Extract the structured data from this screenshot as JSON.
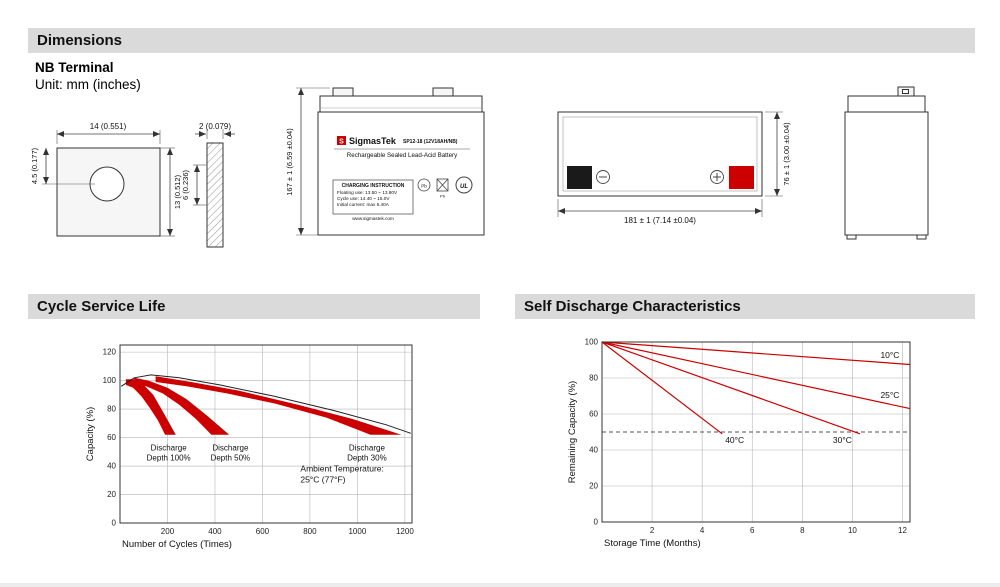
{
  "page": {
    "dimensions_title": "Dimensions",
    "terminal_type": "NB Terminal",
    "unit_label": "Unit: mm (inches)",
    "cycle_title": "Cycle Service Life",
    "discharge_title": "Self Discharge Characteristics"
  },
  "dims": {
    "terminal_front": {
      "width": "14 (0.551)",
      "hole": "4.5 (0.177)",
      "height": "13 (0.512)"
    },
    "terminal_side": {
      "thickness": "2 (0.079)",
      "height": "6 (0.236)"
    },
    "battery": {
      "height": "167 ± 1 (6.59 ±0.04)",
      "length": "181 ± 1 (7.14 ±0.04)",
      "width": "76 ± 1 (3.00 ±0.04)"
    }
  },
  "battery_label": {
    "logo_letter": "S",
    "brand": "SigmasTek",
    "model": "SP12-18 (12V18AH/NB)",
    "subtitle": "Rechargeable Sealed Lead-Acid Battery",
    "charging_title": "CHARGING INSTRUCTION",
    "charging_lines": [
      "Floating use: 13.50 ~ 13.80V",
      "Cycle use: 14.40 ~ 15.0V",
      "Initial current: max 5.40A"
    ],
    "website": "www.sigmastek.com",
    "icon_names": [
      "pb-recycle-icon",
      "crossed-bin-icon",
      "ul-mark-icon"
    ],
    "ul_text": "UL",
    "pb_text": "Pb"
  },
  "colors": {
    "accent_red": "#cc0000",
    "header_bg": "#dadada"
  },
  "chart_data": [
    {
      "id": "cycle",
      "type": "area",
      "title": "Cycle Service Life",
      "xlabel": "Number of Cycles (Times)",
      "ylabel": "Capacity (%)",
      "xlim": [
        0,
        1230
      ],
      "ylim": [
        0,
        125
      ],
      "xticks": [
        200,
        400,
        600,
        800,
        1000,
        1200
      ],
      "yticks": [
        0,
        20,
        40,
        60,
        80,
        100,
        120
      ],
      "grid": true,
      "series_color": "#cc0000",
      "top_curve": [
        [
          5,
          96
        ],
        [
          60,
          102
        ],
        [
          130,
          104
        ],
        [
          250,
          102
        ],
        [
          420,
          97
        ],
        [
          650,
          89
        ],
        [
          900,
          79
        ],
        [
          1120,
          69
        ],
        [
          1225,
          63
        ]
      ],
      "bands": [
        {
          "name": "Discharge Depth 100%",
          "label_lines": [
            "Discharge",
            "Depth 100%"
          ],
          "label_at": [
            205,
            51
          ],
          "upper": [
            [
              25,
              101
            ],
            [
              60,
              101
            ],
            [
              100,
              97
            ],
            [
              140,
              90
            ],
            [
              185,
              77
            ],
            [
              235,
              62
            ]
          ],
          "lower": [
            [
              25,
              97
            ],
            [
              55,
              95
            ],
            [
              90,
              89
            ],
            [
              125,
              81
            ],
            [
              160,
              72
            ],
            [
              190,
              62
            ]
          ]
        },
        {
          "name": "Discharge Depth 50%",
          "label_lines": [
            "Discharge",
            "Depth 50%"
          ],
          "label_at": [
            465,
            51
          ],
          "upper": [
            [
              60,
              102
            ],
            [
              120,
              100
            ],
            [
              200,
              95
            ],
            [
              280,
              87
            ],
            [
              370,
              75
            ],
            [
              460,
              62
            ]
          ],
          "lower": [
            [
              60,
              98
            ],
            [
              110,
              96
            ],
            [
              180,
              91
            ],
            [
              250,
              83
            ],
            [
              320,
              73
            ],
            [
              385,
              62
            ]
          ]
        },
        {
          "name": "Discharge Depth 30%",
          "label_lines": [
            "Discharge",
            "Depth 30%"
          ],
          "label_at": [
            1040,
            51
          ],
          "upper": [
            [
              150,
              103
            ],
            [
              300,
              99
            ],
            [
              500,
              93
            ],
            [
              750,
              83
            ],
            [
              980,
              73
            ],
            [
              1185,
              62
            ]
          ],
          "lower": [
            [
              150,
              99
            ],
            [
              280,
              96
            ],
            [
              450,
              91
            ],
            [
              650,
              84
            ],
            [
              870,
              74
            ],
            [
              1055,
              62
            ]
          ]
        }
      ],
      "annotation": {
        "lines": [
          "Ambient Temperature:",
          "25°C (77°F)"
        ],
        "at": [
          760,
          36
        ]
      }
    },
    {
      "id": "self_discharge",
      "type": "line",
      "title": "Self Discharge Characteristics",
      "xlabel": "Storage Time (Months)",
      "ylabel": "Remaining Capacity (%)",
      "xlim": [
        0,
        12.3
      ],
      "ylim": [
        0,
        100
      ],
      "xticks": [
        2,
        4,
        6,
        8,
        10,
        12
      ],
      "yticks": [
        0,
        20,
        40,
        60,
        80,
        100
      ],
      "grid": true,
      "series_color": "#cc0000",
      "reference_line_y": 50,
      "series": [
        {
          "name": "10°C",
          "points": [
            [
              0,
              100
            ],
            [
              12.3,
              87.5
            ]
          ],
          "label_at": [
            11.5,
            91
          ]
        },
        {
          "name": "25°C",
          "points": [
            [
              0,
              100
            ],
            [
              12.3,
              63
            ]
          ],
          "label_at": [
            11.5,
            69
          ]
        },
        {
          "name": "30°C",
          "points": [
            [
              0,
              100
            ],
            [
              10.3,
              49
            ]
          ],
          "label_at": [
            9.6,
            44
          ]
        },
        {
          "name": "40°C",
          "points": [
            [
              0,
              100
            ],
            [
              4.8,
              49
            ]
          ],
          "label_at": [
            5.3,
            44
          ]
        }
      ]
    }
  ]
}
